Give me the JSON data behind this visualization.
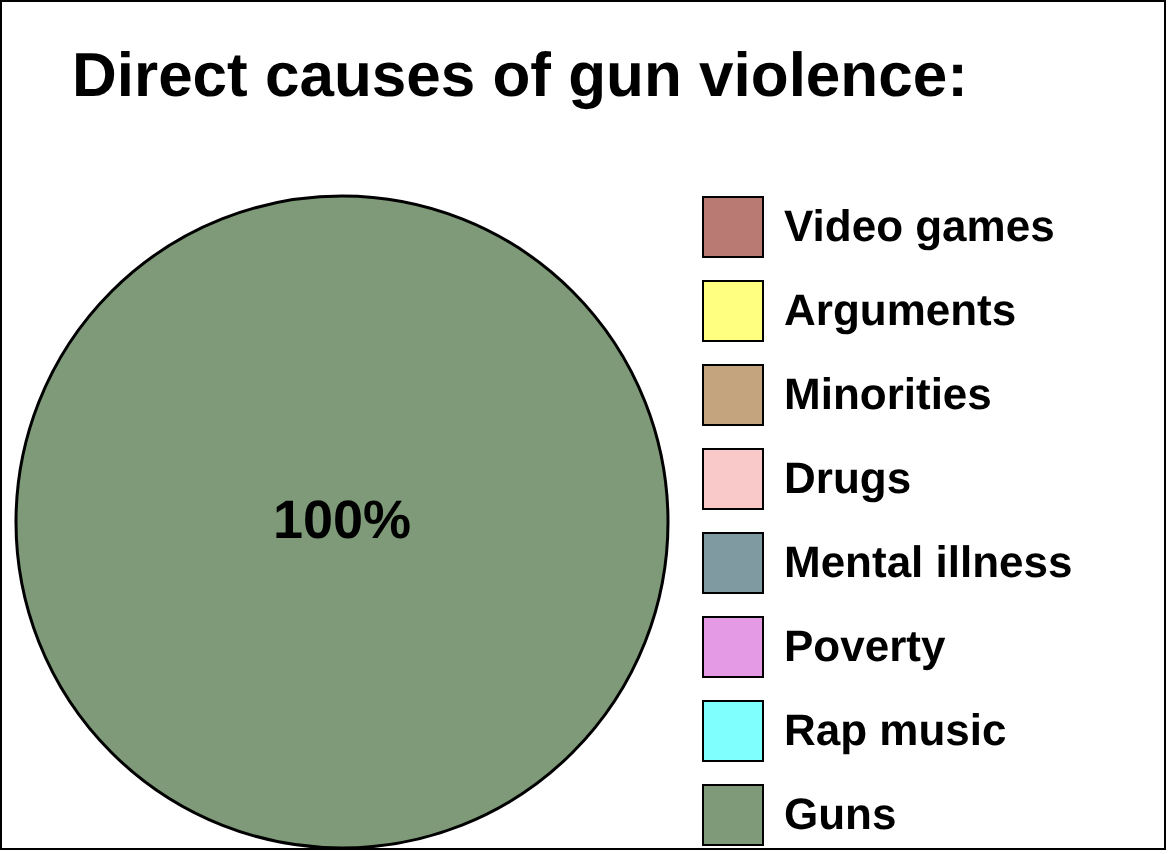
{
  "chart_data": {
    "type": "pie",
    "title": "Direct causes of gun violence:",
    "categories": [
      "Video games",
      "Arguments",
      "Minorities",
      "Drugs",
      "Mental illness",
      "Poverty",
      "Rap music",
      "Guns"
    ],
    "values": [
      0,
      0,
      0,
      0,
      0,
      0,
      0,
      100
    ],
    "colors": [
      "#b87a72",
      "#ffff80",
      "#c4a47e",
      "#f9c8c8",
      "#7f9aa0",
      "#e49ae4",
      "#80ffff",
      "#7f9a78"
    ],
    "value_labels": [
      null,
      null,
      null,
      null,
      null,
      null,
      null,
      "100%"
    ],
    "legend": "right"
  }
}
